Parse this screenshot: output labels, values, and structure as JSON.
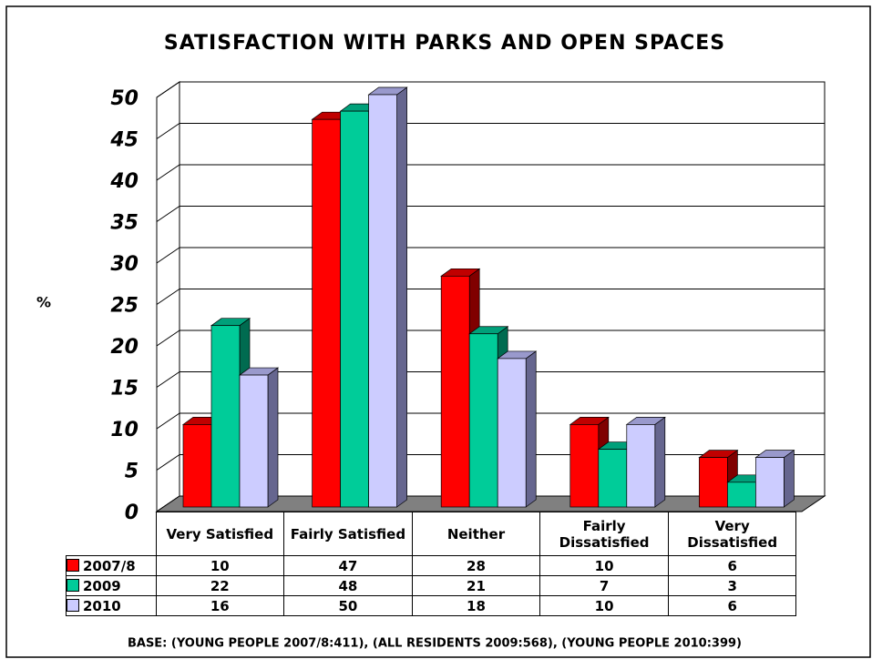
{
  "chart_data": {
    "type": "bar3d",
    "title": "SATISFACTION WITH PARKS AND OPEN SPACES",
    "y_label": "%",
    "categories": [
      "Very Satisfied",
      "Fairly Satisfied",
      "Neither",
      "Fairly Dissatisfied",
      "Very Dissatisfied"
    ],
    "series": [
      {
        "name": "2007/8",
        "color": "#ff0000",
        "side": "#800000",
        "top": "#c00000",
        "values": [
          10,
          47,
          28,
          10,
          6
        ]
      },
      {
        "name": "2009",
        "color": "#00cc99",
        "side": "#006b50",
        "top": "#00a07a",
        "values": [
          22,
          48,
          21,
          7,
          3
        ]
      },
      {
        "name": "2010",
        "color": "#ccccff",
        "side": "#66668f",
        "top": "#9999cc",
        "values": [
          16,
          50,
          18,
          10,
          6
        ]
      }
    ],
    "ylim": [
      0,
      50
    ],
    "yticks": [
      0,
      5,
      10,
      15,
      20,
      25,
      30,
      35,
      40,
      45,
      50
    ],
    "grid": true,
    "footnote": "BASE: (YOUNG PEOPLE 2007/8:411), (ALL RESIDENTS 2009:568), (YOUNG PEOPLE 2010:399)"
  }
}
